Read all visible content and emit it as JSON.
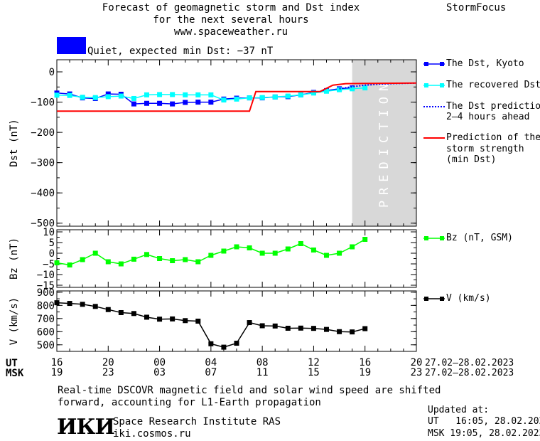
{
  "header": {
    "title_line1": "Forecast of geomagnetic storm and Dst index",
    "title_line2": "for the next several hours",
    "url": "www.spaceweather.ru",
    "brand": "StormFocus"
  },
  "status": {
    "color": "#0000ff",
    "text": "Quiet, expected min Dst: −37 nT"
  },
  "prediction_label": "PREDICTION",
  "legend": {
    "dst_kyoto": "The Dst, Kyoto",
    "recovered": "The recovered Dst",
    "dst_pred_1": "The Dst prediction",
    "dst_pred_2": "2–4 hours ahead",
    "storm_1": "Prediction of the",
    "storm_2": "storm strength",
    "storm_3": "(min Dst)",
    "bz": "Bz (nT, GSM)",
    "v": "V (km/s)"
  },
  "time_axis": {
    "ut_label": "UT",
    "msk_label": "MSK",
    "ut_ticks": [
      "16",
      "20",
      "00",
      "04",
      "08",
      "12",
      "16",
      "20"
    ],
    "msk_ticks": [
      "19",
      "23",
      "03",
      "07",
      "11",
      "15",
      "19",
      "23"
    ],
    "date_range_ut": "27.02–28.02.2023",
    "date_range_msk": "27.02–28.02.2023"
  },
  "footer": {
    "note_line1": "Real-time DSCOVR magnetic field and solar wind speed are shifted",
    "note_line2": "forward, accounting for L1-Earth propagation",
    "logo": "ИКИ",
    "institute": "Space Research Institute RAS",
    "site": "iki.cosmos.ru",
    "updated_label": "Updated at:",
    "updated_ut": "UT   16:05, 28.02.2023",
    "updated_msk": "MSK 19:05, 28.02.2023"
  },
  "chart_data": [
    {
      "type": "line",
      "ylabel": "Dst (nT)",
      "xlim": [
        16,
        44
      ],
      "ylim": [
        -510,
        40
      ],
      "yticks": [
        0,
        -100,
        -200,
        -300,
        -400,
        -500
      ],
      "ytick_labels": [
        "0",
        "−100",
        "−200",
        "−300",
        "−400",
        "−500"
      ],
      "prediction_region": [
        39,
        44
      ],
      "series": [
        {
          "name": "The Dst, Kyoto",
          "color": "#0000ff",
          "marker": "square",
          "x": [
            16,
            17,
            18,
            19,
            20,
            21,
            22,
            23,
            24,
            25,
            26,
            27,
            28,
            29,
            30,
            31,
            32,
            33,
            34,
            35,
            36,
            37,
            38,
            39
          ],
          "y": [
            -70,
            -73,
            -86,
            -88,
            -73,
            -74,
            -106,
            -104,
            -104,
            -106,
            -101,
            -100,
            -100,
            -90,
            -87,
            -86,
            -86,
            -83,
            -82,
            -76,
            -68,
            -62,
            -56,
            -53
          ]
        },
        {
          "name": "The recovered Dst",
          "color": "#00ffff",
          "marker": "square",
          "x": [
            16,
            17,
            18,
            19,
            20,
            21,
            22,
            23,
            24,
            25,
            26,
            27,
            28,
            29,
            30,
            31,
            32,
            33,
            34,
            35,
            36,
            37,
            38,
            39,
            40
          ],
          "y": [
            -77,
            -78,
            -84,
            -85,
            -82,
            -80,
            -88,
            -76,
            -75,
            -75,
            -76,
            -76,
            -76,
            -93,
            -90,
            -86,
            -85,
            -83,
            -80,
            -76,
            -70,
            -64,
            -59,
            -56,
            -53
          ]
        },
        {
          "name": "The Dst prediction 2–4 hours ahead",
          "color": "#0000ff",
          "dashed": true,
          "x": [
            38,
            39,
            40,
            41,
            42,
            43,
            44
          ],
          "y": [
            -56,
            -49,
            -44,
            -41,
            -39,
            -38,
            -37
          ]
        },
        {
          "name": "Prediction of the storm strength (min Dst)",
          "color": "#ff0000",
          "x": [
            16,
            31,
            31.5,
            36.5,
            37.5,
            38.5,
            44
          ],
          "y": [
            -130,
            -130,
            -65,
            -65,
            -44,
            -39,
            -37
          ]
        }
      ]
    },
    {
      "type": "line",
      "ylabel": "Bz (nT)",
      "xlim": [
        16,
        44
      ],
      "ylim": [
        -16,
        11
      ],
      "yticks": [
        10,
        5,
        0,
        -5,
        -10,
        -15
      ],
      "ytick_labels": [
        "10",
        "5",
        "0",
        "−5",
        "−10",
        "−15"
      ],
      "series": [
        {
          "name": "Bz (nT, GSM)",
          "color": "#00ff00",
          "marker": "square",
          "x": [
            16,
            17,
            18,
            19,
            20,
            21,
            22,
            23,
            24,
            25,
            26,
            27,
            28,
            29,
            30,
            31,
            32,
            33,
            34,
            35,
            36,
            37,
            38,
            39,
            40
          ],
          "y": [
            -4.5,
            -5.5,
            -3,
            0,
            -4,
            -5,
            -2.8,
            -0.6,
            -2.5,
            -3.5,
            -3,
            -4,
            -1,
            1,
            3,
            2.5,
            0,
            0,
            2,
            4.5,
            1.5,
            -1,
            0,
            3,
            6.5
          ]
        }
      ]
    },
    {
      "type": "line",
      "ylabel": "V (km/s)",
      "xlim": [
        16,
        44
      ],
      "ylim": [
        450,
        910
      ],
      "yticks": [
        900,
        800,
        700,
        600,
        500
      ],
      "ytick_labels": [
        "900",
        "800",
        "700",
        "600",
        "500"
      ],
      "series": [
        {
          "name": "V (km/s)",
          "color": "#000000",
          "marker": "square",
          "x": [
            16,
            17,
            18,
            19,
            20,
            21,
            22,
            23,
            24,
            25,
            26,
            27,
            28,
            29,
            30,
            31,
            32,
            33,
            34,
            35,
            36,
            37,
            38,
            39,
            40
          ],
          "y": [
            820,
            815,
            808,
            792,
            768,
            745,
            738,
            710,
            695,
            697,
            684,
            680,
            508,
            482,
            512,
            669,
            645,
            643,
            626,
            627,
            625,
            617,
            600,
            598,
            623
          ]
        }
      ]
    }
  ]
}
